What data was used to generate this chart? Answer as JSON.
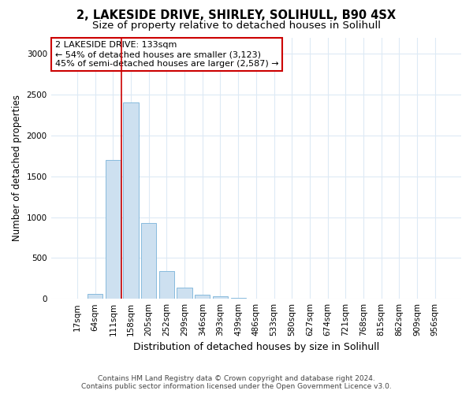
{
  "title": "2, LAKESIDE DRIVE, SHIRLEY, SOLIHULL, B90 4SX",
  "subtitle": "Size of property relative to detached houses in Solihull",
  "xlabel": "Distribution of detached houses by size in Solihull",
  "ylabel": "Number of detached properties",
  "footer_line1": "Contains HM Land Registry data © Crown copyright and database right 2024.",
  "footer_line2": "Contains public sector information licensed under the Open Government Licence v3.0.",
  "bin_labels": [
    "17sqm",
    "64sqm",
    "111sqm",
    "158sqm",
    "205sqm",
    "252sqm",
    "299sqm",
    "346sqm",
    "393sqm",
    "439sqm",
    "486sqm",
    "533sqm",
    "580sqm",
    "627sqm",
    "674sqm",
    "721sqm",
    "768sqm",
    "815sqm",
    "862sqm",
    "909sqm",
    "956sqm"
  ],
  "bar_values": [
    0,
    55,
    1700,
    2400,
    930,
    340,
    140,
    50,
    30,
    10,
    4,
    1,
    0,
    0,
    0,
    0,
    0,
    0,
    0,
    0,
    0
  ],
  "bar_color": "#cde0f0",
  "bar_edgecolor": "#88bbdd",
  "grid_color": "#ddeaf5",
  "annotation_text": "2 LAKESIDE DRIVE: 133sqm\n← 54% of detached houses are smaller (3,123)\n45% of semi-detached houses are larger (2,587) →",
  "annotation_box_color": "#ffffff",
  "annotation_box_edge": "#cc0000",
  "vline_x": 2.48,
  "vline_color": "#cc0000",
  "ylim": [
    0,
    3200
  ],
  "yticks": [
    0,
    500,
    1000,
    1500,
    2000,
    2500,
    3000
  ],
  "background_color": "#ffffff",
  "title_fontsize": 10.5,
  "subtitle_fontsize": 9.5,
  "footer_fontsize": 6.5,
  "ylabel_fontsize": 8.5,
  "xlabel_fontsize": 9,
  "tick_fontsize": 7.5,
  "annot_fontsize": 8
}
